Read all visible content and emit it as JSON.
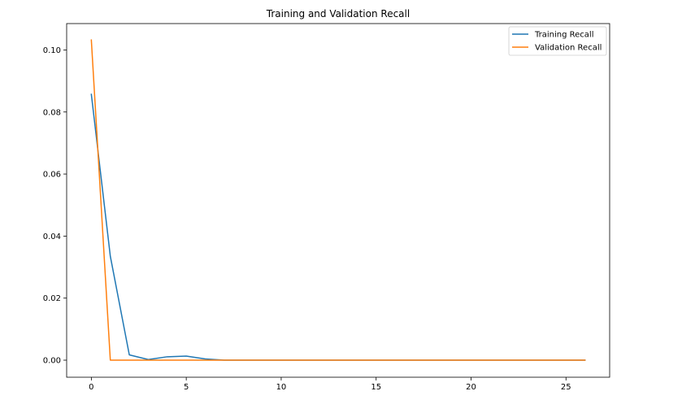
{
  "chart_data": {
    "type": "line",
    "title": "Training and Validation Recall",
    "xlabel": "",
    "ylabel": "",
    "xlim": [
      -1.3,
      27.3
    ],
    "ylim": [
      -0.0055,
      0.1085
    ],
    "xticks": [
      0,
      5,
      10,
      15,
      20,
      25
    ],
    "xtick_labels": [
      "0",
      "5",
      "10",
      "15",
      "20",
      "25"
    ],
    "yticks": [
      0.0,
      0.02,
      0.04,
      0.06,
      0.08,
      0.1
    ],
    "ytick_labels": [
      "0.00",
      "0.02",
      "0.04",
      "0.06",
      "0.08",
      "0.10"
    ],
    "grid": false,
    "legend": "top-right",
    "x": [
      0,
      1,
      2,
      3,
      4,
      5,
      6,
      7,
      8,
      9,
      10,
      11,
      12,
      13,
      14,
      15,
      16,
      17,
      18,
      19,
      20,
      21,
      22,
      23,
      24,
      25,
      26
    ],
    "series": [
      {
        "name": "Training Recall",
        "color": "#1f77b4",
        "values": [
          0.0857,
          0.0335,
          0.0017,
          0.0002,
          0.0011,
          0.0013,
          0.0004,
          0,
          0,
          0,
          0,
          0,
          0,
          0,
          0,
          0,
          0,
          0,
          0,
          0,
          0,
          0,
          0,
          0,
          0,
          0,
          0
        ]
      },
      {
        "name": "Validation Recall",
        "color": "#ff7f0e",
        "values": [
          0.1032,
          0,
          0,
          0,
          0,
          0,
          0,
          0,
          0,
          0,
          0,
          0,
          0,
          0,
          0,
          0,
          0,
          0,
          0,
          0,
          0,
          0,
          0,
          0,
          0,
          0,
          0
        ]
      }
    ]
  }
}
